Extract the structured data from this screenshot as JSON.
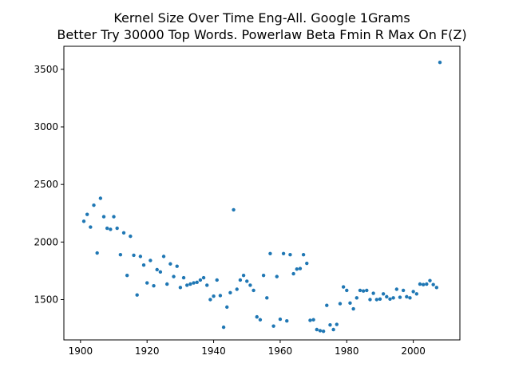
{
  "chart_data": {
    "type": "scatter",
    "title_line1": "Kernel Size Over Time Eng-All. Google 1Grams",
    "title_line2": "Better Try 30000 Top Words. Powerlaw Beta Fmin R Max On F(Z)",
    "xlabel": "",
    "ylabel": "",
    "xlim": [
      1895,
      2014
    ],
    "ylim": [
      1150,
      3700
    ],
    "xticks": [
      1900,
      1920,
      1940,
      1960,
      1980,
      2000
    ],
    "yticks": [
      1500,
      2000,
      2500,
      3000,
      3500
    ],
    "grid": false,
    "marker_color": "#1f77b4",
    "x": [
      1901,
      1902,
      1903,
      1904,
      1905,
      1906,
      1907,
      1908,
      1909,
      1910,
      1911,
      1912,
      1913,
      1914,
      1915,
      1916,
      1917,
      1918,
      1919,
      1920,
      1921,
      1922,
      1923,
      1924,
      1925,
      1926,
      1927,
      1928,
      1929,
      1930,
      1931,
      1932,
      1933,
      1934,
      1935,
      1936,
      1937,
      1938,
      1939,
      1940,
      1941,
      1942,
      1943,
      1944,
      1945,
      1946,
      1947,
      1948,
      1949,
      1950,
      1951,
      1952,
      1953,
      1954,
      1955,
      1956,
      1957,
      1958,
      1959,
      1960,
      1961,
      1962,
      1963,
      1964,
      1965,
      1966,
      1967,
      1968,
      1969,
      1970,
      1971,
      1972,
      1973,
      1974,
      1975,
      1976,
      1977,
      1978,
      1979,
      1980,
      1981,
      1982,
      1983,
      1984,
      1985,
      1986,
      1987,
      1988,
      1989,
      1990,
      1991,
      1992,
      1993,
      1994,
      1995,
      1996,
      1997,
      1998,
      1999,
      2000,
      2001,
      2002,
      2003,
      2004,
      2005,
      2006,
      2007,
      2008
    ],
    "y": [
      2180,
      2240,
      2130,
      2320,
      1905,
      2380,
      2220,
      2120,
      2110,
      2220,
      2120,
      1890,
      2080,
      1710,
      2050,
      1885,
      1540,
      1875,
      1800,
      1645,
      1840,
      1620,
      1760,
      1740,
      1875,
      1635,
      1810,
      1700,
      1790,
      1605,
      1690,
      1625,
      1635,
      1645,
      1650,
      1670,
      1690,
      1625,
      1500,
      1530,
      1670,
      1535,
      1260,
      1435,
      1560,
      2280,
      1590,
      1670,
      1710,
      1660,
      1625,
      1580,
      1350,
      1325,
      1710,
      1515,
      1900,
      1270,
      1700,
      1330,
      1900,
      1315,
      1890,
      1725,
      1765,
      1770,
      1890,
      1815,
      1320,
      1325,
      1240,
      1230,
      1225,
      1450,
      1280,
      1240,
      1285,
      1465,
      1610,
      1580,
      1470,
      1420,
      1515,
      1580,
      1575,
      1580,
      1500,
      1555,
      1500,
      1505,
      1550,
      1525,
      1505,
      1515,
      1590,
      1520,
      1580,
      1525,
      1515,
      1570,
      1550,
      1635,
      1630,
      1635,
      1665,
      1630,
      1605,
      3560
    ]
  }
}
